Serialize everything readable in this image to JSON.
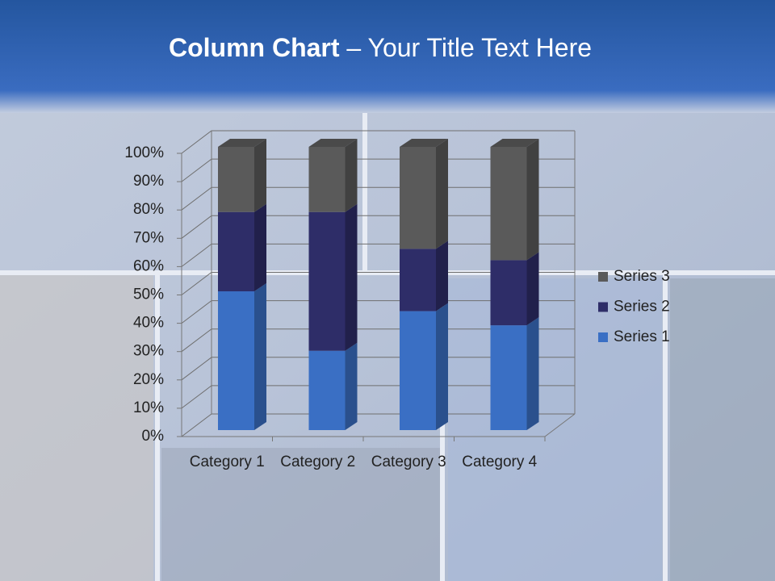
{
  "chart_data": {
    "type": "stacked_column_3d",
    "title": {
      "emphasis": "Column Chart",
      "text": "– Your Title Text Here"
    },
    "categories": [
      "Category 1",
      "Category 2",
      "Category 3",
      "Category 4"
    ],
    "series": [
      {
        "name": "Series 1",
        "color": "#3a6fc4",
        "values": [
          49,
          28,
          42,
          37
        ]
      },
      {
        "name": "Series 2",
        "color": "#2e2d68",
        "values": [
          28,
          49,
          22,
          23
        ]
      },
      {
        "name": "Series 3",
        "color": "#5a5a5a",
        "values": [
          23,
          23,
          36,
          40
        ]
      }
    ],
    "ylim": [
      0,
      100
    ],
    "yticks": [
      {
        "value": 0,
        "label": "0%"
      },
      {
        "value": 10,
        "label": "10%"
      },
      {
        "value": 20,
        "label": "20%"
      },
      {
        "value": 30,
        "label": "30%"
      },
      {
        "value": 40,
        "label": "40%"
      },
      {
        "value": 50,
        "label": "50%"
      },
      {
        "value": 60,
        "label": "60%"
      },
      {
        "value": 70,
        "label": "70%"
      },
      {
        "value": 80,
        "label": "80%"
      },
      {
        "value": 90,
        "label": "90%"
      },
      {
        "value": 100,
        "label": "100%"
      }
    ],
    "grid": true,
    "legend": "right"
  }
}
